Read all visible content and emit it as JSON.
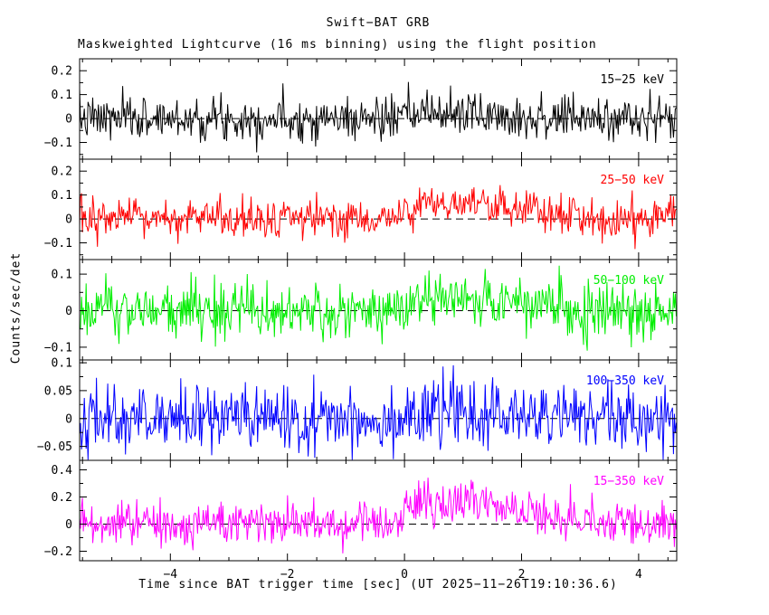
{
  "chart_data": {
    "type": "line",
    "title": "Swift−BAT GRB",
    "subtitle": "Maskweighted Lightcurve (16 ms binning) using the flight position",
    "xlabel": "Time since BAT trigger time [sec] (UT 2025−11−26T19:10:36.6)",
    "ylabel": "Counts/sec/det",
    "background": "#ffffff",
    "axis_color": "#000000",
    "zero_line_style": "dashed",
    "x_range": [
      -5.55,
      4.65
    ],
    "x_ticks": [
      -4,
      -2,
      0,
      2,
      4
    ],
    "x_minor_step": 0.5,
    "bin_seconds": 0.016,
    "panels": [
      {
        "label": "15−25 keV",
        "color": "#000000",
        "ylim": [
          -0.17,
          0.25
        ],
        "yticks": [
          -0.1,
          0,
          0.1,
          0.2
        ],
        "y_minor_step": 0.05,
        "noise_sigma": 0.045,
        "mean_profile": [
          [
            -5.55,
            0
          ],
          [
            -0.1,
            0
          ],
          [
            0.4,
            0.025
          ],
          [
            1.6,
            0.015
          ],
          [
            2.6,
            0
          ],
          [
            4.65,
            0
          ]
        ],
        "seed": 7
      },
      {
        "label": "25−50 keV",
        "color": "#ff0000",
        "ylim": [
          -0.17,
          0.25
        ],
        "yticks": [
          -0.1,
          0,
          0.1,
          0.2
        ],
        "y_minor_step": 0.05,
        "noise_sigma": 0.042,
        "mean_profile": [
          [
            -5.55,
            0
          ],
          [
            -0.2,
            0
          ],
          [
            0.2,
            0.06
          ],
          [
            1.3,
            0.055
          ],
          [
            2.2,
            0.025
          ],
          [
            3.2,
            0.005
          ],
          [
            4.65,
            0
          ]
        ],
        "seed": 13
      },
      {
        "label": "50−100 keV",
        "color": "#00ee00",
        "ylim": [
          -0.135,
          0.14
        ],
        "yticks": [
          -0.1,
          0,
          0.1
        ],
        "y_minor_step": 0.05,
        "noise_sigma": 0.04,
        "mean_profile": [
          [
            -5.55,
            0
          ],
          [
            -0.2,
            0
          ],
          [
            0.3,
            0.03
          ],
          [
            1.6,
            0.025
          ],
          [
            2.6,
            0.005
          ],
          [
            4.65,
            0
          ]
        ],
        "seed": 21
      },
      {
        "label": "100−350 keV",
        "color": "#0000ff",
        "ylim": [
          -0.075,
          0.105
        ],
        "yticks": [
          -0.05,
          0,
          0.05,
          0.1
        ],
        "y_minor_step": 0.025,
        "noise_sigma": 0.03,
        "mean_profile": [
          [
            -5.55,
            0
          ],
          [
            0,
            0
          ],
          [
            0.5,
            0.01
          ],
          [
            2,
            0.005
          ],
          [
            4.65,
            0
          ]
        ],
        "seed": 42
      },
      {
        "label": "15−350 keV",
        "color": "#ff00ff",
        "ylim": [
          -0.27,
          0.47
        ],
        "yticks": [
          -0.2,
          0,
          0.2,
          0.4
        ],
        "y_minor_step": 0.1,
        "noise_sigma": 0.082,
        "mean_profile": [
          [
            -5.55,
            0
          ],
          [
            -0.2,
            0
          ],
          [
            0.3,
            0.16
          ],
          [
            1.1,
            0.17
          ],
          [
            2.1,
            0.09
          ],
          [
            3.0,
            0.02
          ],
          [
            4.65,
            0
          ]
        ],
        "seed": 99
      }
    ]
  }
}
